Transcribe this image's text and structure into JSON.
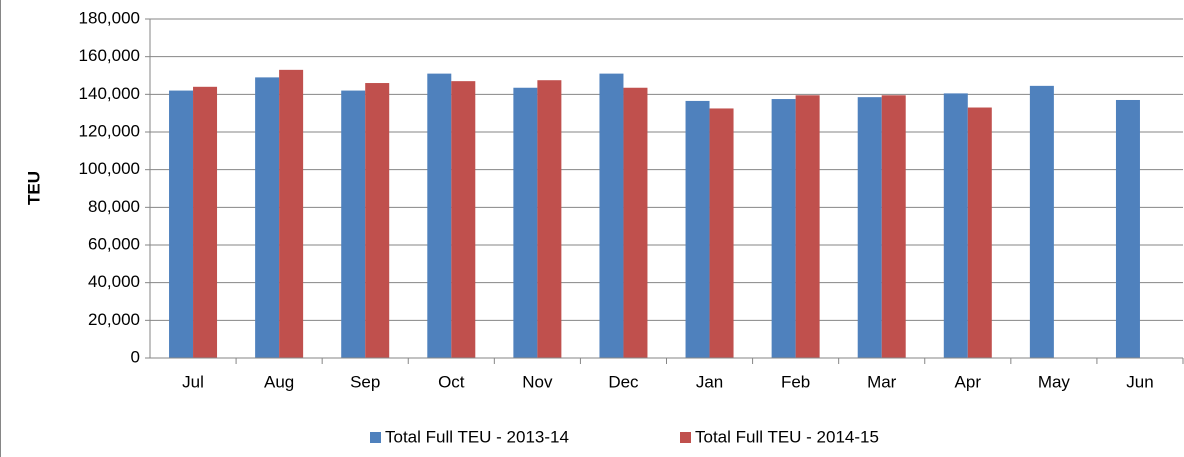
{
  "chart_data": {
    "type": "bar",
    "y_label": "TEU",
    "categories": [
      "Jul",
      "Aug",
      "Sep",
      "Oct",
      "Nov",
      "Dec",
      "Jan",
      "Feb",
      "Mar",
      "Apr",
      "May",
      "Jun"
    ],
    "series": [
      {
        "name": "Total Full TEU - 2013-14",
        "color": "#4f81bd",
        "values": [
          142000,
          149000,
          142000,
          151000,
          143500,
          151000,
          136500,
          137500,
          138500,
          140500,
          144500,
          137000
        ]
      },
      {
        "name": "Total Full TEU - 2014-15",
        "color": "#c0504d",
        "values": [
          144000,
          153000,
          146000,
          147000,
          147500,
          143500,
          132500,
          139500,
          139500,
          133000,
          null,
          null
        ]
      }
    ],
    "ylim": [
      0,
      180000
    ],
    "yticks": [
      0,
      {
        "value": 20000,
        "label": "20,000"
      },
      {
        "value": 40000,
        "label": "40,000"
      },
      {
        "value": 60000,
        "label": "60,000"
      },
      {
        "value": 80000,
        "label": "80,000"
      },
      {
        "value": 100000,
        "label": "100,000"
      },
      {
        "value": 120000,
        "label": "120,000"
      },
      {
        "value": 140000,
        "label": "140,000"
      },
      {
        "value": 160000,
        "label": "160,000"
      },
      {
        "value": 180000,
        "label": "180,000"
      }
    ],
    "grid": true,
    "legend": "bottom"
  }
}
